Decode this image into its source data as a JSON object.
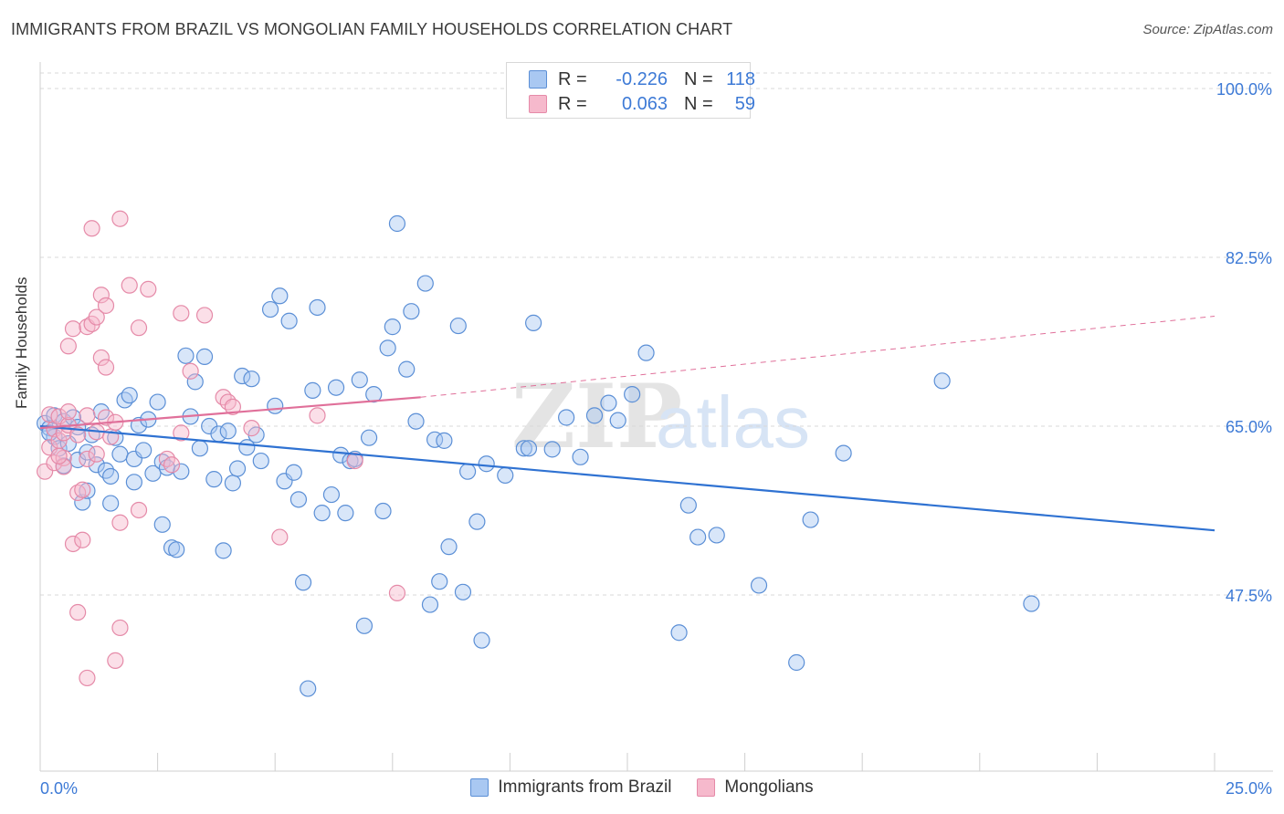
{
  "title": "IMMIGRANTS FROM BRAZIL VS MONGOLIAN FAMILY HOUSEHOLDS CORRELATION CHART",
  "source": "Source: ZipAtlas.com",
  "watermark": {
    "zip": "ZIP",
    "atlas": "atlas"
  },
  "colors": {
    "blue_fill": "#a9c8f2",
    "blue_stroke": "#5b8fd6",
    "blue_line": "#2f72d2",
    "pink_fill": "#f6b9cc",
    "pink_stroke": "#e58aa8",
    "pink_line": "#e0709a",
    "tick_text": "#3d7ad6",
    "grid": "#d9d9d9"
  },
  "legend_stats": [
    {
      "r_label": "R =",
      "r_value": "-0.226",
      "n_label": "N =",
      "n_value": "118",
      "series": "blue"
    },
    {
      "r_label": "R =",
      "r_value": "0.063",
      "n_label": "N =",
      "n_value": "59",
      "series": "pink"
    }
  ],
  "bottom_legend": [
    "Immigrants from Brazil",
    "Mongolians"
  ],
  "chart_data": {
    "type": "scatter",
    "title": "IMMIGRANTS FROM BRAZIL VS MONGOLIAN FAMILY HOUSEHOLDS CORRELATION CHART",
    "xlabel": "",
    "ylabel": "Family Households",
    "xlim": [
      0,
      25
    ],
    "ylim": [
      30,
      102
    ],
    "x_tick_labels": [
      "0.0%",
      "25.0%"
    ],
    "y_ticks": [
      47.5,
      65.0,
      82.5,
      100.0
    ],
    "y_tick_labels": [
      "47.5%",
      "65.0%",
      "82.5%",
      "100.0%"
    ],
    "grid": true,
    "legend_position": "top-center",
    "series": [
      {
        "name": "Immigrants from Brazil",
        "color": "blue",
        "trend": {
          "x": [
            0,
            25
          ],
          "y": [
            65.0,
            54.2
          ],
          "dashed_from": null
        },
        "points": [
          [
            0.1,
            65.3
          ],
          [
            0.2,
            64.8
          ],
          [
            0.3,
            63.9
          ],
          [
            0.3,
            66.1
          ],
          [
            0.4,
            62.7
          ],
          [
            0.5,
            65.5
          ],
          [
            0.6,
            63.2
          ],
          [
            0.7,
            65.9
          ],
          [
            0.8,
            61.5
          ],
          [
            0.8,
            64.9
          ],
          [
            0.9,
            57.1
          ],
          [
            1.0,
            62.3
          ],
          [
            1.1,
            64.1
          ],
          [
            1.2,
            61.0
          ],
          [
            1.3,
            66.5
          ],
          [
            1.4,
            60.4
          ],
          [
            1.5,
            59.8
          ],
          [
            1.6,
            63.8
          ],
          [
            1.7,
            62.1
          ],
          [
            1.8,
            67.7
          ],
          [
            1.9,
            68.2
          ],
          [
            2.0,
            61.6
          ],
          [
            2.1,
            65.1
          ],
          [
            2.2,
            62.5
          ],
          [
            2.3,
            65.7
          ],
          [
            2.4,
            60.1
          ],
          [
            2.5,
            67.5
          ],
          [
            2.6,
            61.3
          ],
          [
            2.7,
            60.7
          ],
          [
            2.8,
            52.4
          ],
          [
            2.9,
            52.2
          ],
          [
            3.0,
            60.3
          ],
          [
            3.1,
            72.3
          ],
          [
            3.2,
            66.0
          ],
          [
            3.3,
            69.6
          ],
          [
            3.4,
            62.7
          ],
          [
            3.5,
            72.2
          ],
          [
            3.6,
            65.0
          ],
          [
            3.7,
            59.5
          ],
          [
            3.8,
            64.2
          ],
          [
            3.9,
            52.1
          ],
          [
            4.0,
            64.5
          ],
          [
            4.1,
            59.1
          ],
          [
            4.2,
            60.6
          ],
          [
            4.3,
            70.2
          ],
          [
            4.4,
            62.8
          ],
          [
            4.5,
            69.9
          ],
          [
            4.6,
            64.1
          ],
          [
            4.7,
            61.4
          ],
          [
            4.9,
            77.1
          ],
          [
            5.0,
            67.1
          ],
          [
            5.1,
            78.5
          ],
          [
            5.2,
            59.3
          ],
          [
            5.3,
            75.9
          ],
          [
            5.4,
            60.2
          ],
          [
            5.5,
            57.4
          ],
          [
            5.6,
            48.8
          ],
          [
            5.7,
            37.8
          ],
          [
            5.8,
            68.7
          ],
          [
            5.9,
            77.3
          ],
          [
            6.0,
            56.0
          ],
          [
            6.2,
            57.9
          ],
          [
            6.3,
            69.0
          ],
          [
            6.4,
            62.0
          ],
          [
            6.5,
            56.0
          ],
          [
            6.6,
            61.4
          ],
          [
            6.7,
            61.6
          ],
          [
            6.8,
            69.8
          ],
          [
            6.9,
            44.3
          ],
          [
            7.0,
            63.8
          ],
          [
            7.1,
            68.3
          ],
          [
            7.3,
            56.2
          ],
          [
            7.4,
            73.1
          ],
          [
            7.5,
            75.3
          ],
          [
            7.6,
            86.0
          ],
          [
            7.8,
            70.9
          ],
          [
            7.9,
            76.9
          ],
          [
            8.0,
            65.5
          ],
          [
            8.2,
            79.8
          ],
          [
            8.3,
            46.5
          ],
          [
            8.4,
            63.6
          ],
          [
            8.5,
            48.9
          ],
          [
            8.6,
            63.5
          ],
          [
            8.7,
            52.5
          ],
          [
            8.9,
            75.4
          ],
          [
            9.0,
            47.8
          ],
          [
            9.1,
            60.3
          ],
          [
            9.3,
            55.1
          ],
          [
            9.4,
            42.8
          ],
          [
            9.5,
            61.1
          ],
          [
            9.9,
            59.9
          ],
          [
            10.3,
            62.7
          ],
          [
            10.4,
            62.7
          ],
          [
            10.5,
            75.7
          ],
          [
            10.9,
            62.6
          ],
          [
            11.2,
            65.9
          ],
          [
            11.5,
            61.8
          ],
          [
            11.8,
            66.1
          ],
          [
            12.1,
            67.4
          ],
          [
            12.3,
            65.6
          ],
          [
            12.6,
            68.3
          ],
          [
            12.9,
            72.6
          ],
          [
            13.6,
            43.6
          ],
          [
            13.8,
            56.8
          ],
          [
            14.0,
            53.5
          ],
          [
            14.4,
            53.7
          ],
          [
            15.3,
            48.5
          ],
          [
            16.1,
            40.5
          ],
          [
            16.4,
            55.3
          ],
          [
            17.1,
            62.2
          ],
          [
            19.2,
            69.7
          ],
          [
            21.1,
            46.6
          ],
          [
            0.2,
            64.3
          ],
          [
            0.5,
            60.9
          ],
          [
            1.0,
            58.3
          ],
          [
            1.5,
            57.0
          ],
          [
            2.0,
            59.2
          ],
          [
            2.6,
            54.8
          ]
        ]
      },
      {
        "name": "Mongolians",
        "color": "pink",
        "trend": {
          "x": [
            0,
            8.1,
            25
          ],
          "y": [
            64.8,
            68.0,
            76.4
          ],
          "dashed_from": 8.1
        },
        "points": [
          [
            0.1,
            60.3
          ],
          [
            0.2,
            66.2
          ],
          [
            0.2,
            62.8
          ],
          [
            0.3,
            64.7
          ],
          [
            0.3,
            61.2
          ],
          [
            0.4,
            63.5
          ],
          [
            0.4,
            66.0
          ],
          [
            0.5,
            61.7
          ],
          [
            0.5,
            60.8
          ],
          [
            0.5,
            64.3
          ],
          [
            0.6,
            65.1
          ],
          [
            0.6,
            66.5
          ],
          [
            0.6,
            73.3
          ],
          [
            0.7,
            52.8
          ],
          [
            0.7,
            75.1
          ],
          [
            0.8,
            58.1
          ],
          [
            0.8,
            64.1
          ],
          [
            0.8,
            45.7
          ],
          [
            0.9,
            58.4
          ],
          [
            0.9,
            53.2
          ],
          [
            1.0,
            75.3
          ],
          [
            1.0,
            66.1
          ],
          [
            1.0,
            61.6
          ],
          [
            1.0,
            38.9
          ],
          [
            1.1,
            75.6
          ],
          [
            1.1,
            85.5
          ],
          [
            1.2,
            64.4
          ],
          [
            1.2,
            62.1
          ],
          [
            1.2,
            76.3
          ],
          [
            1.3,
            78.6
          ],
          [
            1.3,
            72.1
          ],
          [
            1.4,
            65.9
          ],
          [
            1.4,
            77.5
          ],
          [
            1.4,
            71.1
          ],
          [
            1.5,
            63.9
          ],
          [
            1.6,
            40.7
          ],
          [
            1.6,
            65.4
          ],
          [
            1.7,
            86.5
          ],
          [
            1.7,
            44.1
          ],
          [
            1.7,
            55.0
          ],
          [
            1.9,
            79.6
          ],
          [
            2.1,
            56.3
          ],
          [
            2.1,
            75.2
          ],
          [
            2.3,
            79.2
          ],
          [
            2.7,
            61.6
          ],
          [
            2.8,
            61.0
          ],
          [
            3.0,
            76.7
          ],
          [
            3.0,
            64.3
          ],
          [
            3.2,
            70.7
          ],
          [
            3.5,
            76.5
          ],
          [
            3.9,
            68.0
          ],
          [
            4.0,
            67.5
          ],
          [
            4.1,
            67.0
          ],
          [
            4.5,
            64.8
          ],
          [
            5.1,
            53.5
          ],
          [
            5.9,
            66.1
          ],
          [
            6.7,
            61.4
          ],
          [
            7.6,
            47.7
          ],
          [
            0.4,
            61.9
          ]
        ]
      }
    ]
  }
}
